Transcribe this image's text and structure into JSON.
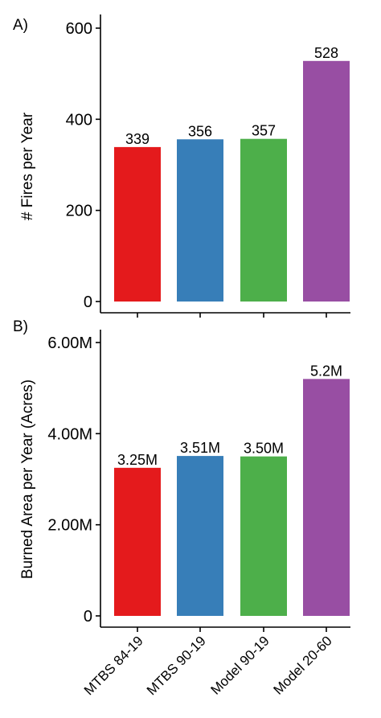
{
  "chart_data": [
    {
      "type": "bar",
      "panel_label": "A)",
      "title": "",
      "xlabel": "",
      "ylabel": "# Fires per Year",
      "categories": [
        "MTBS 84-19",
        "MTBS 90-19",
        "Model 90-19",
        "Model 20-60"
      ],
      "values": [
        339,
        356,
        357,
        528
      ],
      "value_labels": [
        "339",
        "356",
        "357",
        "528"
      ],
      "colors": [
        "#e41a1c",
        "#377eb8",
        "#4daf4a",
        "#984ea3"
      ],
      "ylim": [
        0,
        630
      ],
      "yticks": [
        0,
        200,
        400,
        600
      ],
      "ytick_labels": [
        "0",
        "200",
        "400",
        "600"
      ],
      "grid": false,
      "legend": "none"
    },
    {
      "type": "bar",
      "panel_label": "B)",
      "title": "",
      "xlabel": "",
      "ylabel": "Burned Area per Year (Acres)",
      "categories": [
        "MTBS 84-19",
        "MTBS 90-19",
        "Model 90-19",
        "Model 20-60"
      ],
      "category_labels": [
        "MTBS 84-19",
        "MTBS 90-19",
        "Model 90-19",
        "Model 20-60"
      ],
      "values": [
        3250000,
        3510000,
        3500000,
        5200000
      ],
      "value_labels": [
        "3.25M",
        "3.51M",
        "3.50M",
        "5.2M"
      ],
      "colors": [
        "#e41a1c",
        "#377eb8",
        "#4daf4a",
        "#984ea3"
      ],
      "ylim": [
        0,
        6300000
      ],
      "yticks": [
        0,
        2000000,
        4000000,
        6000000
      ],
      "ytick_labels": [
        "0",
        "2.00M",
        "4.00M",
        "6.00M"
      ],
      "grid": false,
      "legend": "none"
    }
  ]
}
